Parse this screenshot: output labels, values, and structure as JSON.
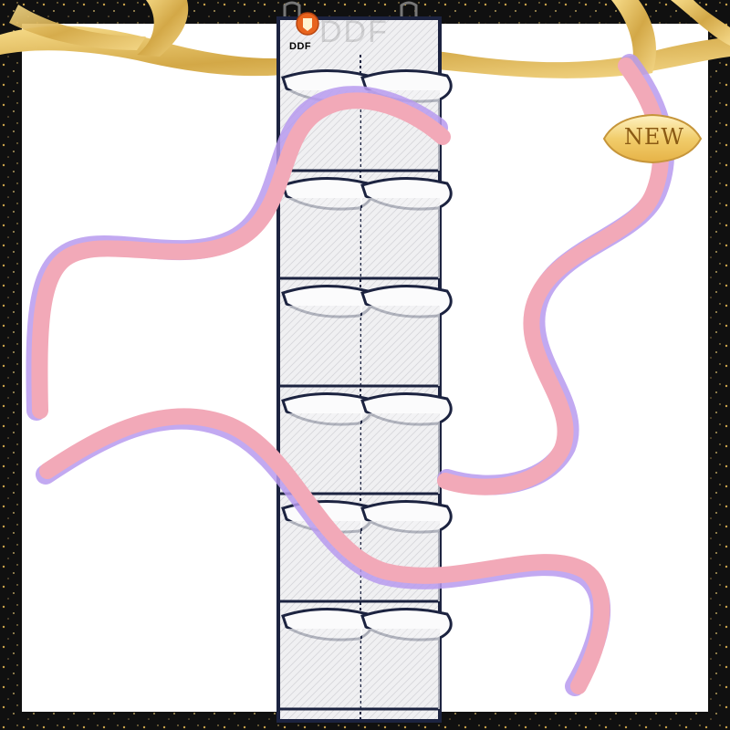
{
  "product": {
    "name": "hanging-shoe-organizer",
    "pocket_rows": 6,
    "pocket_columns": 2
  },
  "logo": {
    "icon": "ddf-crest-icon",
    "text": "DDF",
    "color": "#e8641e"
  },
  "watermark": {
    "text": "DDF"
  },
  "badge": {
    "text": "NEW",
    "color": "#e8c05a"
  },
  "colors": {
    "frame_dark": "#111111",
    "frame_gold": "#c9a24a",
    "ribbon_pink": "#f2a9b8",
    "ribbon_purple": "#b79aee",
    "organizer_trim": "#1c2340",
    "mesh": "#eeeeef"
  }
}
